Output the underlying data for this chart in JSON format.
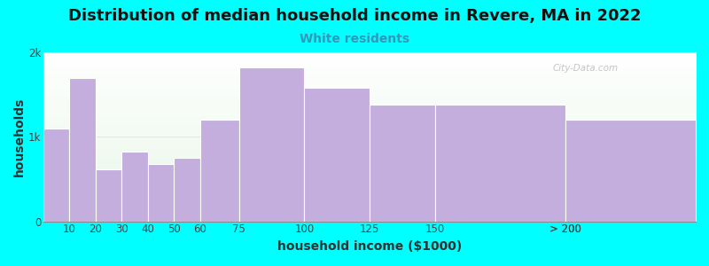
{
  "title": "Distribution of median household income in Revere, MA in 2022",
  "subtitle": "White residents",
  "xlabel": "household income ($1000)",
  "ylabel": "households",
  "background_color": "#00FFFF",
  "bar_color": "#C4AEDD",
  "bar_edge_color": "#ffffff",
  "bin_edges": [
    0,
    10,
    20,
    30,
    40,
    50,
    60,
    75,
    100,
    125,
    150,
    200,
    250
  ],
  "bin_labels": [
    "10",
    "20",
    "30",
    "40",
    "50",
    "60",
    "75",
    "100",
    "125",
    "150",
    "200",
    "> 200"
  ],
  "values": [
    1100,
    1700,
    620,
    830,
    680,
    750,
    1200,
    1820,
    1580,
    1380,
    1380,
    1200
  ],
  "ylim": [
    0,
    2000
  ],
  "yticks": [
    0,
    1000,
    2000
  ],
  "ytick_labels": [
    "0",
    "1k",
    "2k"
  ],
  "title_fontsize": 13,
  "subtitle_fontsize": 10,
  "subtitle_color": "#3399BB",
  "axis_label_fontsize": 10,
  "tick_fontsize": 8.5,
  "watermark_text": "City-Data.com"
}
